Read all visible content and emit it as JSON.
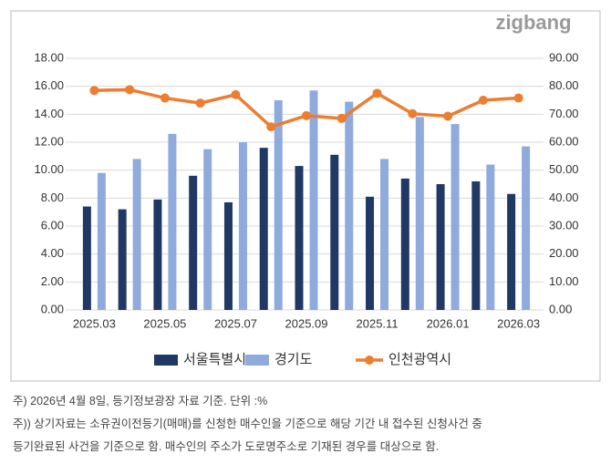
{
  "logo": "zigbang",
  "notes": [
    "주) 2026년 4월 8일, 등기정보광장 자료 기준. 단위 :%",
    "주)) 상기자료는 소유권이전등기(매매)를 신청한 매수인을 기준으로 해당 기간 내 접수된 신청사건 중",
    "등기완료된 사건을 기준으로 함. 매수인의 주소가 도로명주소로 기재된 경우를 대상으로 함."
  ],
  "chart_data": {
    "type": "bar",
    "categories": [
      "2025.03",
      null,
      "2025.05",
      null,
      "2025.07",
      null,
      "2025.09",
      null,
      "2025.11",
      null,
      "2026.01",
      null,
      "2026.03"
    ],
    "series": [
      {
        "name": "서울특별시",
        "color": "#203864",
        "values": [
          7.4,
          7.2,
          7.9,
          9.6,
          7.7,
          11.6,
          10.3,
          11.1,
          8.1,
          9.4,
          9.0,
          9.2,
          8.3
        ]
      },
      {
        "name": "경기도",
        "color": "#8faadc",
        "values": [
          9.8,
          10.8,
          12.6,
          11.5,
          12.0,
          15.0,
          15.7,
          14.9,
          10.8,
          13.8,
          13.3,
          10.4,
          11.7
        ]
      },
      {
        "name": "인천광역시",
        "color": "#ed7d31",
        "type": "line",
        "axis": "y2",
        "values": [
          78.5,
          78.8,
          75.8,
          74.0,
          77.0,
          65.5,
          69.5,
          68.5,
          77.5,
          70.2,
          69.3,
          75.0,
          75.8
        ]
      }
    ],
    "ylim": [
      0,
      18
    ],
    "yticks": [
      {
        "value": 0,
        "label": "0.00"
      },
      {
        "value": 2,
        "label": "2.00"
      },
      {
        "value": 4,
        "label": "4.00"
      },
      {
        "value": 6,
        "label": "6.00"
      },
      {
        "value": 8,
        "label": "8.00"
      },
      {
        "value": 10,
        "label": "10.00"
      },
      {
        "value": 12,
        "label": "12.00"
      },
      {
        "value": 14,
        "label": "14.00"
      },
      {
        "value": 16,
        "label": "16.00"
      },
      {
        "value": 18,
        "label": "18.00"
      }
    ],
    "y2lim": [
      0,
      90
    ],
    "y2ticks": [
      {
        "value": 0,
        "label": "0.00"
      },
      {
        "value": 10,
        "label": "10.00"
      },
      {
        "value": 20,
        "label": "20.00"
      },
      {
        "value": 30,
        "label": "30.00"
      },
      {
        "value": 40,
        "label": "40.00"
      },
      {
        "value": 50,
        "label": "50.00"
      },
      {
        "value": 60,
        "label": "60.00"
      },
      {
        "value": 70,
        "label": "70.00"
      },
      {
        "value": 80,
        "label": "80.00"
      },
      {
        "value": 90,
        "label": "90.00"
      }
    ],
    "grid": true,
    "legend": "bottom"
  }
}
